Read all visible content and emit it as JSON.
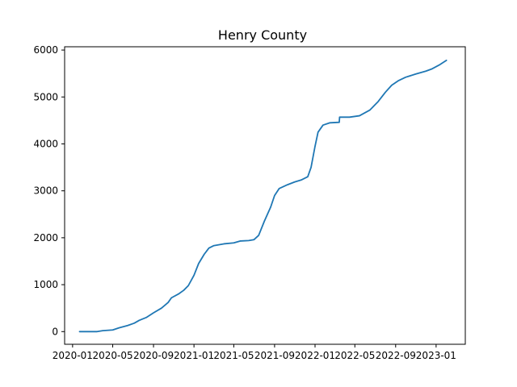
{
  "chart_data": {
    "type": "line",
    "title": "Henry County",
    "xlabel": "",
    "ylabel": "",
    "x_type": "date",
    "xlim": [
      "2019-12-08",
      "2023-03-30"
    ],
    "ylim": [
      -270,
      6070
    ],
    "x_ticks": [
      {
        "date": "2020-01-01",
        "label": "2020-01"
      },
      {
        "date": "2020-05-01",
        "label": "2020-05"
      },
      {
        "date": "2020-09-01",
        "label": "2020-09"
      },
      {
        "date": "2021-01-01",
        "label": "2021-01"
      },
      {
        "date": "2021-05-01",
        "label": "2021-05"
      },
      {
        "date": "2021-09-01",
        "label": "2021-09"
      },
      {
        "date": "2022-01-01",
        "label": "2022-01"
      },
      {
        "date": "2022-05-01",
        "label": "2022-05"
      },
      {
        "date": "2022-09-01",
        "label": "2022-09"
      },
      {
        "date": "2023-01-01",
        "label": "2023-01"
      }
    ],
    "y_ticks": [
      0,
      1000,
      2000,
      3000,
      4000,
      5000,
      6000
    ],
    "grid": false,
    "legend": "none",
    "series": [
      {
        "color": "#1f77b4",
        "points": [
          [
            "2020-01-22",
            0
          ],
          [
            "2020-03-15",
            0
          ],
          [
            "2020-04-01",
            20
          ],
          [
            "2020-05-01",
            35
          ],
          [
            "2020-05-20",
            80
          ],
          [
            "2020-06-15",
            130
          ],
          [
            "2020-07-05",
            180
          ],
          [
            "2020-07-20",
            240
          ],
          [
            "2020-08-10",
            300
          ],
          [
            "2020-09-01",
            400
          ],
          [
            "2020-09-25",
            500
          ],
          [
            "2020-10-15",
            620
          ],
          [
            "2020-10-25",
            720
          ],
          [
            "2020-11-15",
            800
          ],
          [
            "2020-12-01",
            880
          ],
          [
            "2020-12-15",
            980
          ],
          [
            "2021-01-01",
            1200
          ],
          [
            "2021-01-15",
            1450
          ],
          [
            "2021-02-01",
            1650
          ],
          [
            "2021-02-15",
            1780
          ],
          [
            "2021-03-01",
            1830
          ],
          [
            "2021-04-01",
            1870
          ],
          [
            "2021-05-01",
            1890
          ],
          [
            "2021-05-20",
            1930
          ],
          [
            "2021-06-15",
            1940
          ],
          [
            "2021-07-01",
            1960
          ],
          [
            "2021-07-15",
            2050
          ],
          [
            "2021-08-01",
            2350
          ],
          [
            "2021-08-20",
            2650
          ],
          [
            "2021-09-01",
            2900
          ],
          [
            "2021-09-15",
            3050
          ],
          [
            "2021-10-10",
            3130
          ],
          [
            "2021-11-01",
            3190
          ],
          [
            "2021-11-20",
            3230
          ],
          [
            "2021-12-10",
            3300
          ],
          [
            "2021-12-20",
            3500
          ],
          [
            "2022-01-01",
            3950
          ],
          [
            "2022-01-10",
            4250
          ],
          [
            "2022-01-25",
            4400
          ],
          [
            "2022-02-15",
            4450
          ],
          [
            "2022-03-15",
            4460
          ],
          [
            "2022-03-16",
            4570
          ],
          [
            "2022-04-15",
            4570
          ],
          [
            "2022-05-15",
            4600
          ],
          [
            "2022-06-15",
            4720
          ],
          [
            "2022-07-10",
            4900
          ],
          [
            "2022-08-01",
            5100
          ],
          [
            "2022-08-20",
            5250
          ],
          [
            "2022-09-10",
            5350
          ],
          [
            "2022-10-01",
            5420
          ],
          [
            "2022-11-01",
            5490
          ],
          [
            "2022-12-01",
            5550
          ],
          [
            "2022-12-20",
            5600
          ],
          [
            "2023-01-10",
            5680
          ],
          [
            "2023-02-01",
            5780
          ]
        ]
      }
    ]
  }
}
